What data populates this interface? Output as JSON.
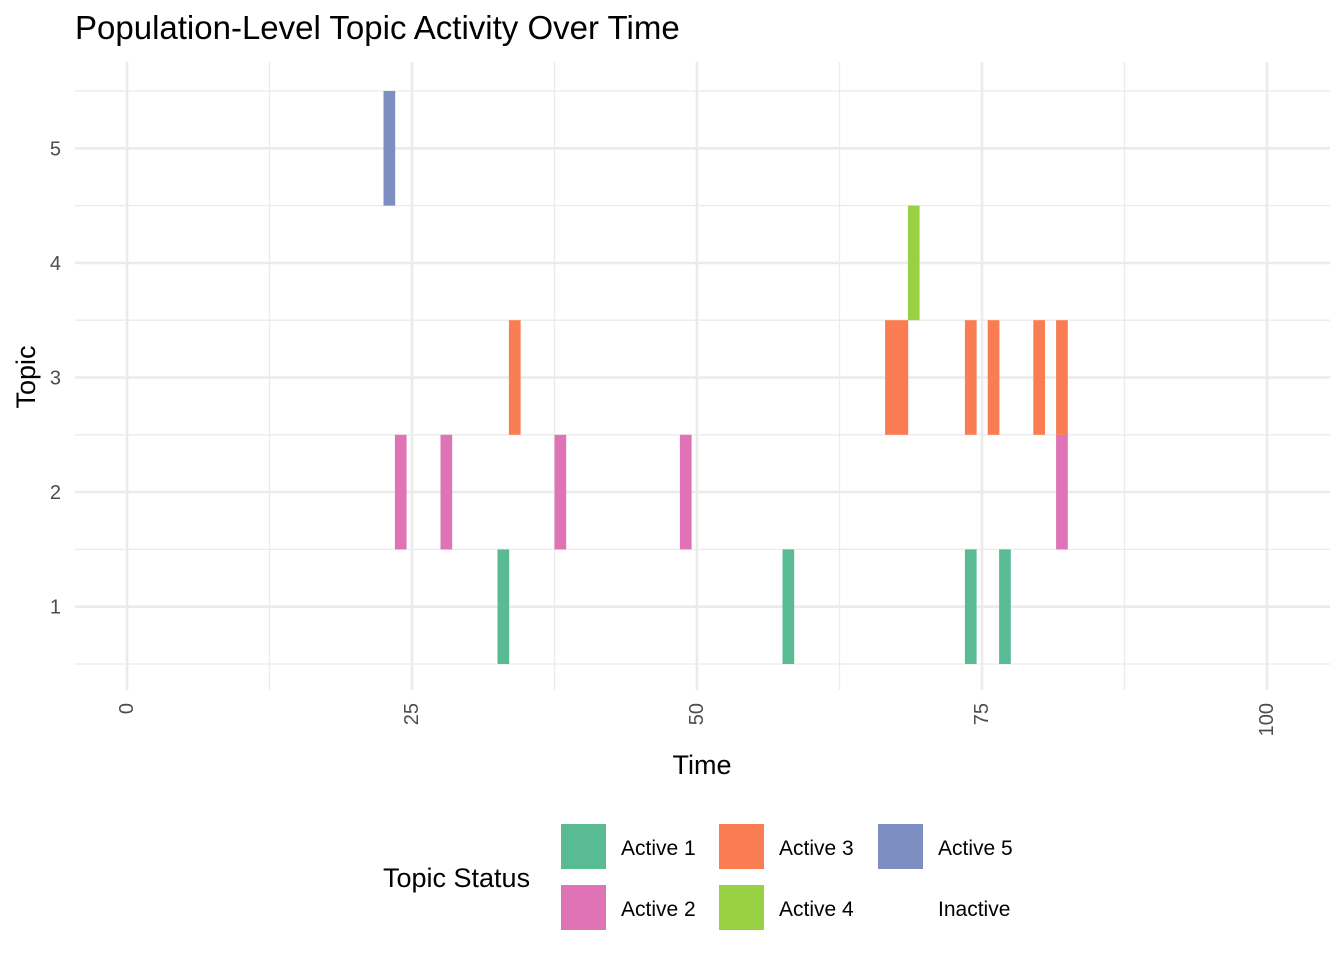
{
  "chart_data": {
    "type": "heatmap",
    "title": "Population-Level Topic Activity Over Time",
    "xlabel": "Time",
    "ylabel": "Topic",
    "xlim": [
      0,
      100
    ],
    "ylim": [
      0.5,
      5.5
    ],
    "x_ticks": [
      0,
      25,
      50,
      75,
      100
    ],
    "y_ticks": [
      1,
      2,
      3,
      4,
      5
    ],
    "grid": true,
    "legend": {
      "title": "Topic Status",
      "position": "bottom",
      "entries": [
        {
          "label": "Active 1",
          "color": "#59bb94"
        },
        {
          "label": "Active 2",
          "color": "#df73b6"
        },
        {
          "label": "Active 3",
          "color": "#f97c52"
        },
        {
          "label": "Active 4",
          "color": "#98d244"
        },
        {
          "label": "Active 5",
          "color": "#7d8ec2"
        },
        {
          "label": "Inactive",
          "color": "#ffffff"
        }
      ]
    },
    "series": [
      {
        "name": "Active 1",
        "topic": 1,
        "times": [
          33,
          58,
          74,
          77
        ]
      },
      {
        "name": "Active 2",
        "topic": 2,
        "times": [
          24,
          28,
          38,
          49,
          82
        ]
      },
      {
        "name": "Active 3",
        "topic": 3,
        "times": [
          34,
          67,
          68,
          74,
          76,
          80,
          82
        ]
      },
      {
        "name": "Active 4",
        "topic": 4,
        "times": [
          69
        ]
      },
      {
        "name": "Active 5",
        "topic": 5,
        "times": [
          23
        ]
      }
    ]
  }
}
